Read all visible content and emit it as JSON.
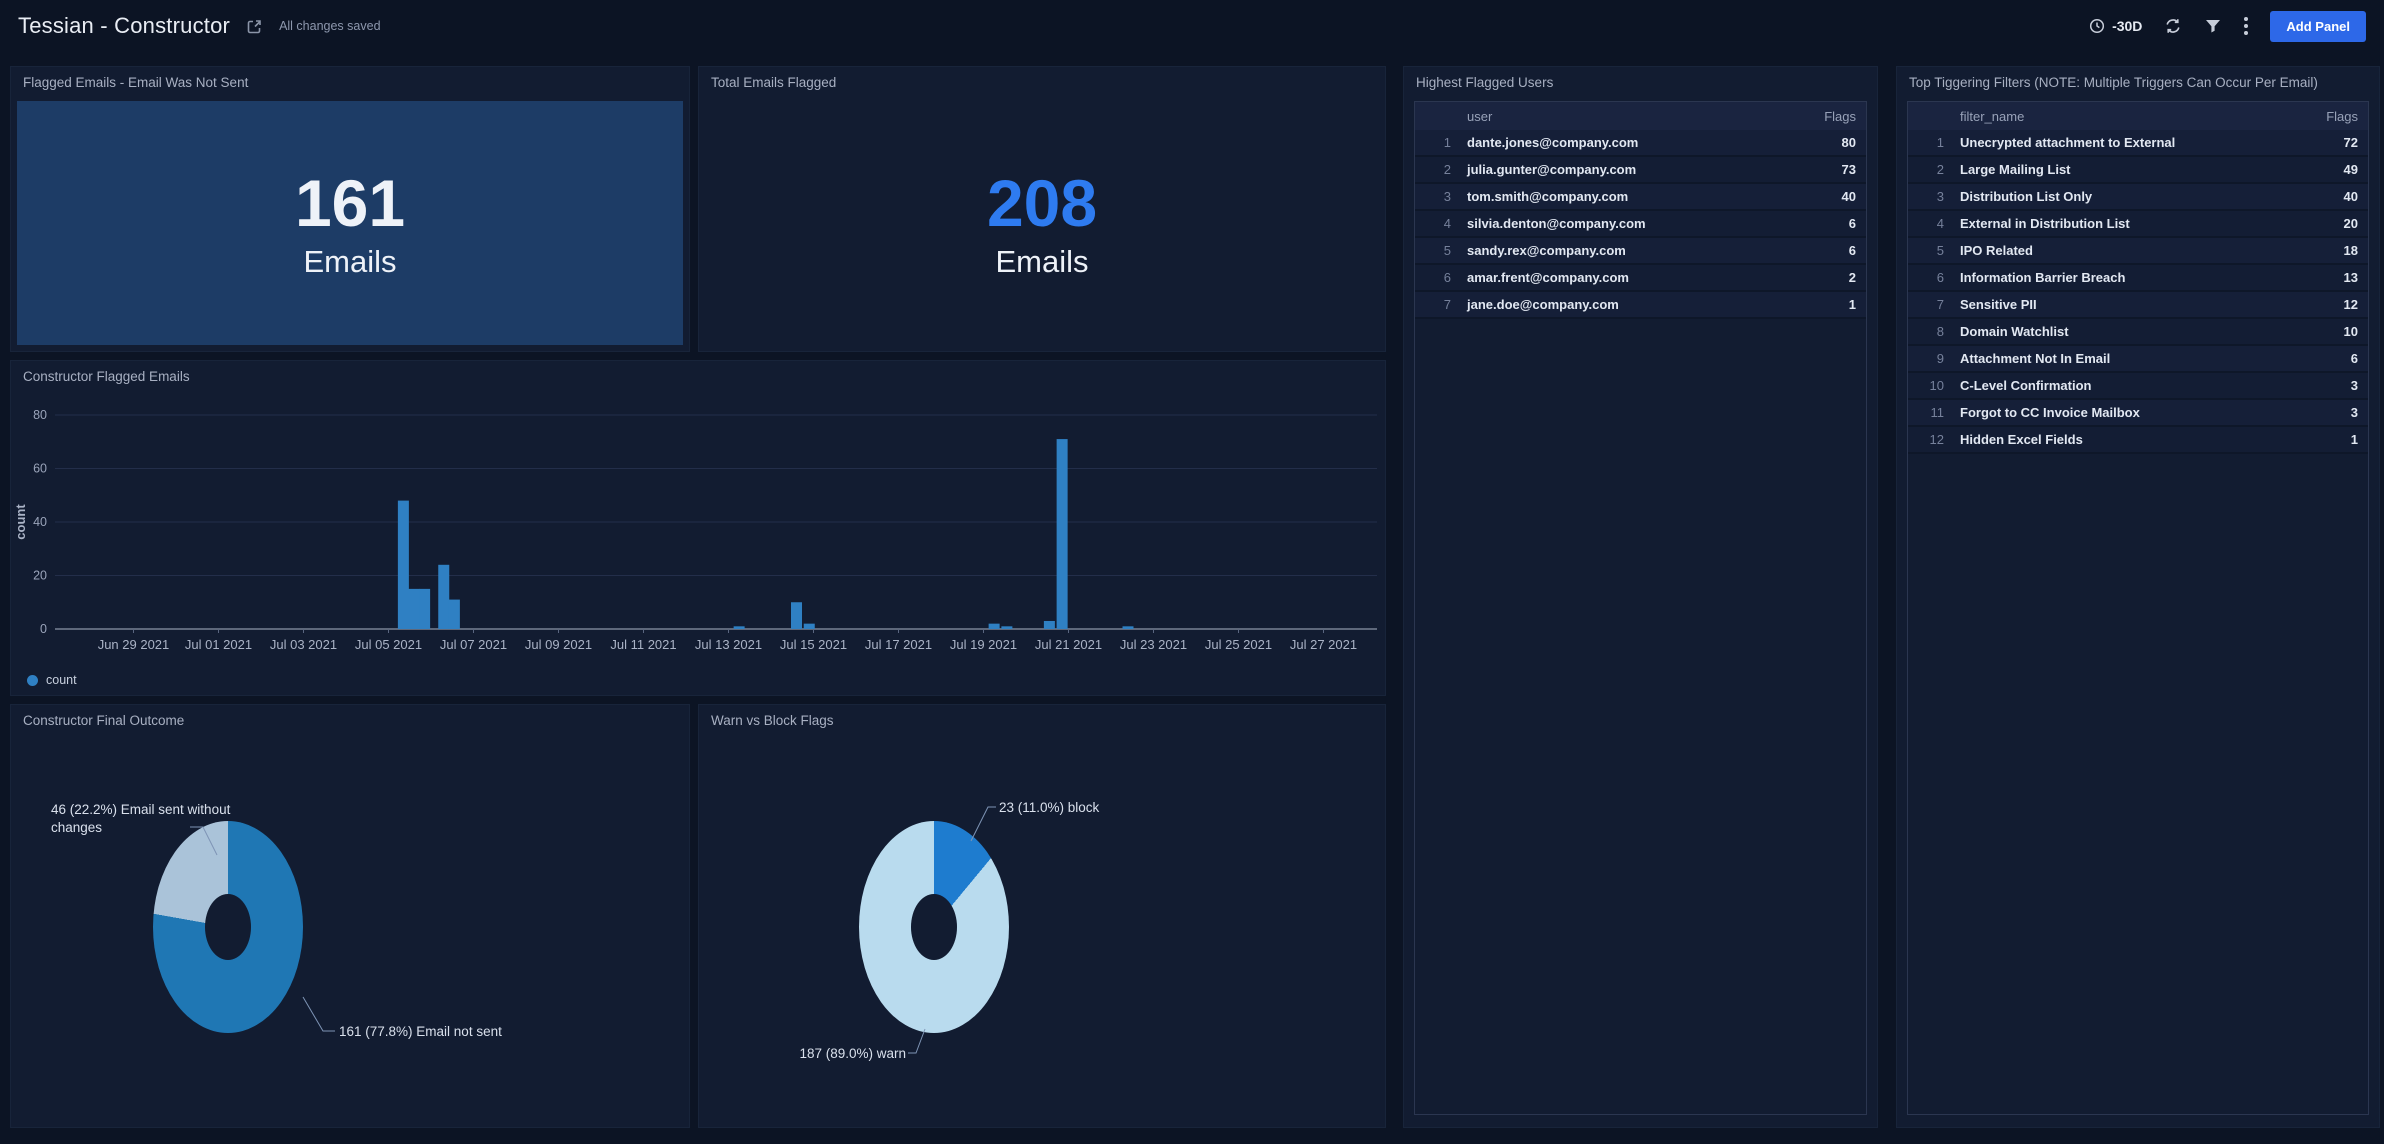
{
  "header": {
    "title": "Tessian - Constructor",
    "save_status": "All changes saved",
    "time_range": "-30D",
    "add_panel_label": "Add Panel",
    "icons": {
      "share": "share-external-arrow",
      "time": "clock",
      "refresh": "circular-arrows",
      "filter": "funnel",
      "menu": "kebab-vertical-dots"
    }
  },
  "colors": {
    "page_bg": "#0c1424",
    "panel_bg": "#121c31",
    "stat_panel_bg": "#1d3c66",
    "accent_blue": "#2e7bf0",
    "button_blue": "#2d68e8",
    "bar_blue": "#2f80c3",
    "pie_blue": "#1f77b4",
    "pie_light_blue": "#aac3d9",
    "pie_pale_blue": "#b9dbee"
  },
  "panels": {
    "flagged_not_sent": {
      "title": "Flagged Emails - Email Was Not Sent",
      "value": "161",
      "unit": "Emails"
    },
    "total_flagged": {
      "title": "Total Emails Flagged",
      "value": "208",
      "unit": "Emails"
    },
    "flagged_over_time": {
      "title": "Constructor Flagged Emails"
    },
    "final_outcome": {
      "title": "Constructor Final Outcome",
      "label_sent_without_changes": "46 (22.2%) Email sent without changes",
      "label_not_sent": "161 (77.8%) Email not sent"
    },
    "warn_vs_block": {
      "title": "Warn vs Block Flags",
      "label_block": "23 (11.0%) block",
      "label_warn": "187 (89.0%) warn"
    },
    "highest_flagged_users": {
      "title": "Highest Flagged Users",
      "columns": {
        "index": "",
        "name": "user",
        "flags": "Flags"
      },
      "rows": [
        {
          "index": 1,
          "name": "dante.jones@company.com",
          "flags": 80
        },
        {
          "index": 2,
          "name": "julia.gunter@company.com",
          "flags": 73
        },
        {
          "index": 3,
          "name": "tom.smith@company.com",
          "flags": 40
        },
        {
          "index": 4,
          "name": "silvia.denton@company.com",
          "flags": 6
        },
        {
          "index": 5,
          "name": "sandy.rex@company.com",
          "flags": 6
        },
        {
          "index": 6,
          "name": "amar.frent@company.com",
          "flags": 2
        },
        {
          "index": 7,
          "name": "jane.doe@company.com",
          "flags": 1
        }
      ]
    },
    "top_triggering_filters": {
      "title": "Top Tiggering Filters (NOTE: Multiple Triggers Can Occur Per Email)",
      "columns": {
        "index": "",
        "name": "filter_name",
        "flags": "Flags"
      },
      "rows": [
        {
          "index": 1,
          "name": "Unecrypted attachment to External",
          "flags": 72
        },
        {
          "index": 2,
          "name": "Large Mailing List",
          "flags": 49
        },
        {
          "index": 3,
          "name": "Distribution List Only",
          "flags": 40
        },
        {
          "index": 4,
          "name": "External in Distribution List",
          "flags": 20
        },
        {
          "index": 5,
          "name": "IPO Related",
          "flags": 18
        },
        {
          "index": 6,
          "name": "Information Barrier Breach",
          "flags": 13
        },
        {
          "index": 7,
          "name": "Sensitive PII",
          "flags": 12
        },
        {
          "index": 8,
          "name": "Domain Watchlist",
          "flags": 10
        },
        {
          "index": 9,
          "name": "Attachment Not In Email",
          "flags": 6
        },
        {
          "index": 10,
          "name": "C-Level Confirmation",
          "flags": 3
        },
        {
          "index": 11,
          "name": "Forgot to CC Invoice Mailbox",
          "flags": 3
        },
        {
          "index": 12,
          "name": "Hidden Excel Fields",
          "flags": 1
        }
      ]
    }
  },
  "chart_data": [
    {
      "type": "bar",
      "title": "Constructor Flagged Emails",
      "xlabel": "",
      "ylabel": "count",
      "ylim": [
        0,
        80
      ],
      "yticks": [
        0,
        20,
        40,
        60,
        80
      ],
      "grid": true,
      "legend_position": "bottom-left",
      "legend": [
        "count"
      ],
      "x_axis": {
        "start": "Jun 28 2021",
        "end": "Jul 28 2021",
        "tick_labels": [
          "Jun 29 2021",
          "Jul 01 2021",
          "Jul 03 2021",
          "Jul 05 2021",
          "Jul 07 2021",
          "Jul 09 2021",
          "Jul 11 2021",
          "Jul 13 2021",
          "Jul 15 2021",
          "Jul 17 2021",
          "Jul 19 2021",
          "Jul 21 2021",
          "Jul 23 2021",
          "Jul 25 2021",
          "Jul 27 2021"
        ]
      },
      "series": [
        {
          "name": "count",
          "color": "#2f80c3",
          "points": [
            {
              "date": "Jul 05 2021",
              "x_day": 7.35,
              "value": 48
            },
            {
              "date": "Jul 05 2021",
              "x_day": 7.6,
              "value": 15
            },
            {
              "date": "Jul 05 2021",
              "x_day": 7.85,
              "value": 15
            },
            {
              "date": "Jul 06 2021",
              "x_day": 8.3,
              "value": 24
            },
            {
              "date": "Jul 06 2021",
              "x_day": 8.55,
              "value": 11
            },
            {
              "date": "Jul 13 2021",
              "x_day": 15.25,
              "value": 1
            },
            {
              "date": "Jul 14 2021",
              "x_day": 16.6,
              "value": 10
            },
            {
              "date": "Jul 14 2021",
              "x_day": 16.9,
              "value": 2
            },
            {
              "date": "Jul 19 2021",
              "x_day": 21.25,
              "value": 2
            },
            {
              "date": "Jul 19 2021",
              "x_day": 21.55,
              "value": 1
            },
            {
              "date": "Jul 20 2021",
              "x_day": 22.55,
              "value": 3
            },
            {
              "date": "Jul 20 2021",
              "x_day": 22.85,
              "value": 71
            },
            {
              "date": "Jul 22 2021",
              "x_day": 24.4,
              "value": 1
            }
          ]
        }
      ]
    },
    {
      "type": "pie",
      "title": "Constructor Final Outcome",
      "donut": true,
      "slices": [
        {
          "label": "Email not sent",
          "value": 161,
          "pct": 77.8,
          "color": "#1f77b4"
        },
        {
          "label": "Email sent without changes",
          "value": 46,
          "pct": 22.2,
          "color": "#aac3d9"
        }
      ]
    },
    {
      "type": "pie",
      "title": "Warn vs Block Flags",
      "donut": true,
      "slices": [
        {
          "label": "block",
          "value": 23,
          "pct": 11.0,
          "color": "#1e7ccf"
        },
        {
          "label": "warn",
          "value": 187,
          "pct": 89.0,
          "color": "#b9dbee"
        }
      ]
    }
  ]
}
